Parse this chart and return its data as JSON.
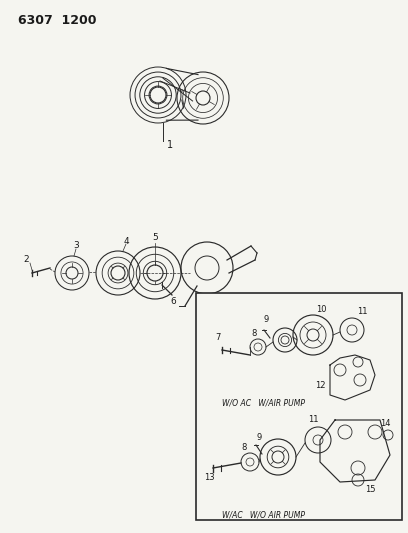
{
  "title_code": "6307  1200",
  "bg_color": "#f5f5f0",
  "line_color": "#2a2a2a",
  "text_color": "#1a1a1a",
  "fig_width": 4.08,
  "fig_height": 5.33,
  "dpi": 100,
  "label1": "W/O AC   W/AIR PUMP",
  "label2": "W/AC   W/O AIR PUMP"
}
